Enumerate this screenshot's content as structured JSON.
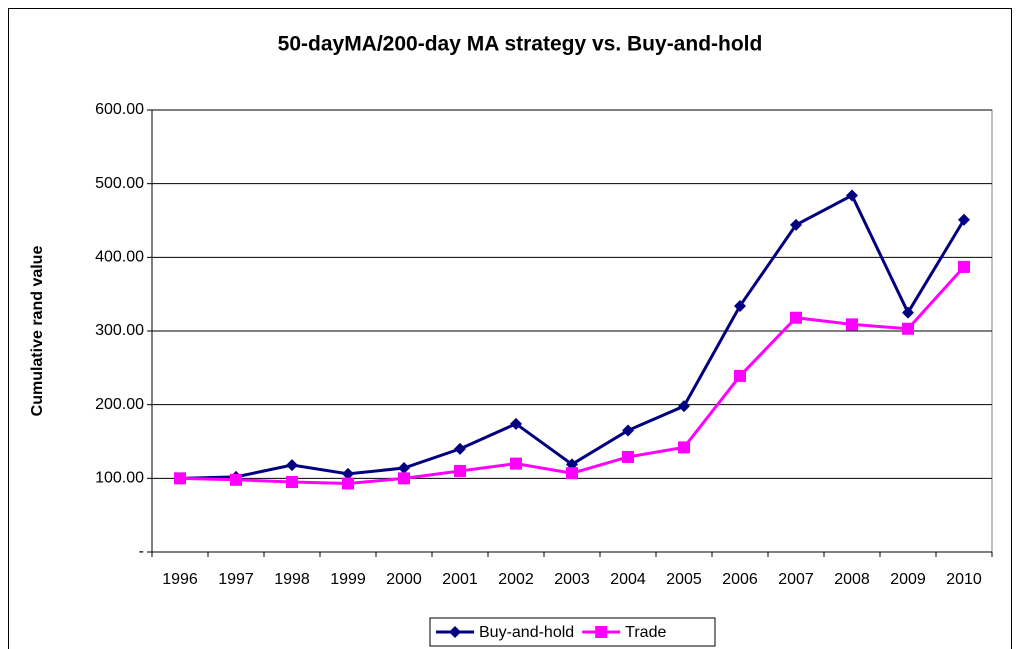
{
  "chart_data": {
    "type": "line",
    "title": "50-dayMA/200-day MA strategy vs. Buy-and-hold",
    "y_label": "Cumulative rand value",
    "categories": [
      "1996",
      "1997",
      "1998",
      "1999",
      "2000",
      "2001",
      "2002",
      "2003",
      "2004",
      "2005",
      "2006",
      "2007",
      "2008",
      "2009",
      "2010"
    ],
    "series": [
      {
        "name": "Buy-and-hold",
        "color": "#000080",
        "marker": "diamond",
        "values": [
          100,
          102,
          118,
          106,
          114,
          140,
          174,
          119,
          165,
          198,
          334,
          444,
          484,
          325,
          451
        ]
      },
      {
        "name": "Trade",
        "color": "#ff00ff",
        "marker": "square",
        "values": [
          100,
          98,
          95,
          93,
          100,
          110,
          120,
          107,
          129,
          142,
          239,
          318,
          309,
          303,
          387
        ]
      }
    ],
    "ylim": [
      0,
      600
    ],
    "yticks": [
      {
        "value": 0,
        "label": "-"
      },
      {
        "value": 100,
        "label": "100.00"
      },
      {
        "value": 200,
        "label": "200.00"
      },
      {
        "value": 300,
        "label": "300.00"
      },
      {
        "value": 400,
        "label": "400.00"
      },
      {
        "value": 500,
        "label": "500.00"
      },
      {
        "value": 600,
        "label": "600.00"
      }
    ],
    "grid": true,
    "legend": "bottom"
  }
}
